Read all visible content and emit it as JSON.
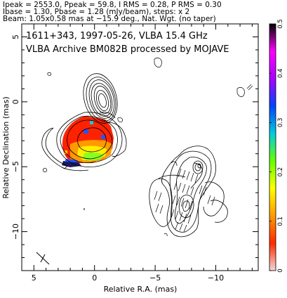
{
  "header": {
    "line1": "Ipeak = 2553.0, Ppeak = 59.8, I RMS = 0.28, P RMS = 0.30",
    "line2": "Ibase = 1.30, Pbase = 1.28 (mJy/beam), steps: x 2",
    "line3": "Beam: 1.05x0.58 mas at −15.9 deg., Nat. Wgt. (no taper)"
  },
  "chart_data": {
    "type": "heatmap",
    "title_line1": "1611+343, 1997-05-26, VLBA 15.4 GHz",
    "title_line2": "VLBA Archive BM082B processed by MOJAVE",
    "xlabel": "Relative R.A. (mas)",
    "ylabel": "Relative Declination (mas)",
    "xlim": [
      6,
      -13.5
    ],
    "ylim": [
      -13,
      6
    ],
    "x_ticks": [
      5,
      0,
      -5,
      -10
    ],
    "x_tick_labels": [
      "5",
      "0",
      "−5",
      "−10"
    ],
    "y_ticks": [
      5,
      0,
      -5,
      -10
    ],
    "y_tick_labels": [
      "5",
      "0",
      "−5",
      "−10"
    ],
    "colorbar": {
      "range": [
        0,
        0.5
      ],
      "ticks": [
        0,
        0.1,
        0.2,
        0.3,
        0.4,
        0.5
      ],
      "tick_labels": [
        "0",
        "0.1",
        "0.2",
        "0.3",
        "0.4",
        "0.5"
      ],
      "stops": [
        "#f5d6d6",
        "#ff2a00",
        "#ff9a00",
        "#ffff00",
        "#66ff00",
        "#00ccdd",
        "#0044ff",
        "#aa00ff",
        "#ff00ff",
        "#000000"
      ]
    },
    "colors": {
      "contour": "#000000",
      "fraction_core": "#ff2200",
      "fraction_mid": "#ffee00",
      "fraction_edge": "#2255ff"
    }
  }
}
